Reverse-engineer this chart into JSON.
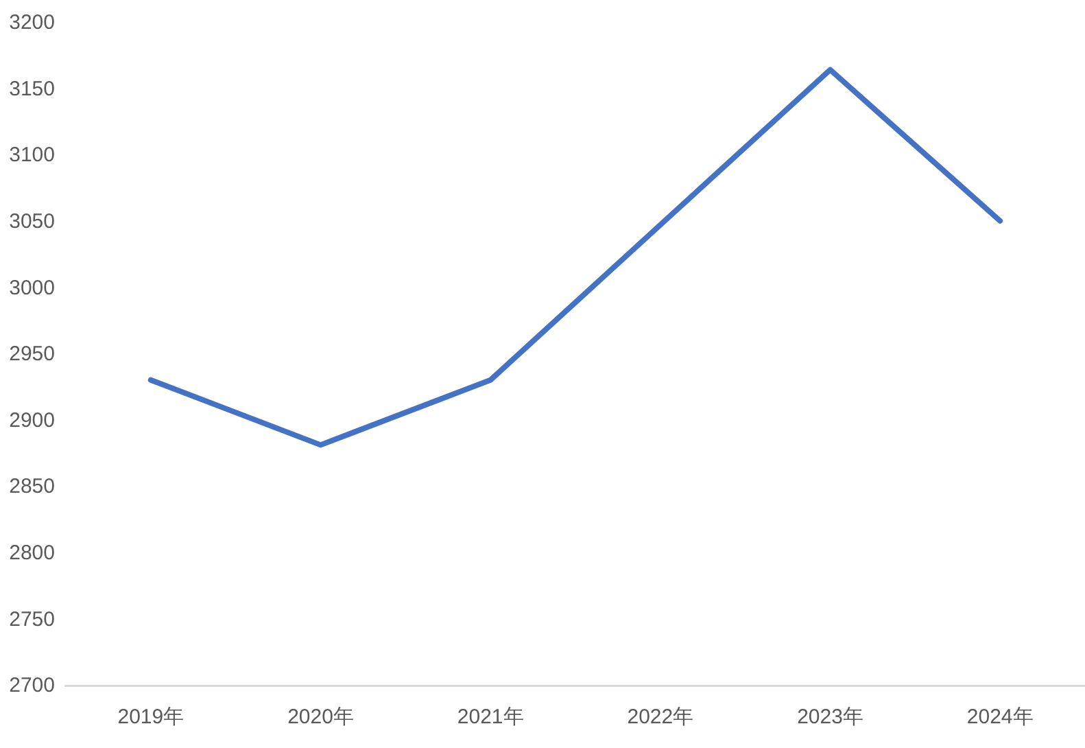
{
  "chart_data": {
    "type": "line",
    "categories": [
      "2019年",
      "2020年",
      "2021年",
      "2022年",
      "2023年",
      "2024年"
    ],
    "series": [
      {
        "color": "#4472c4",
        "values": [
          2931,
          2882,
          2931,
          3048,
          3165,
          3051
        ]
      }
    ],
    "ylim": [
      2700,
      3200
    ],
    "yticks": [
      2700,
      2750,
      2800,
      2850,
      2900,
      2950,
      3000,
      3050,
      3100,
      3150,
      3200
    ],
    "grid": false,
    "legend": false,
    "marker": "none",
    "line_style": "solid"
  }
}
